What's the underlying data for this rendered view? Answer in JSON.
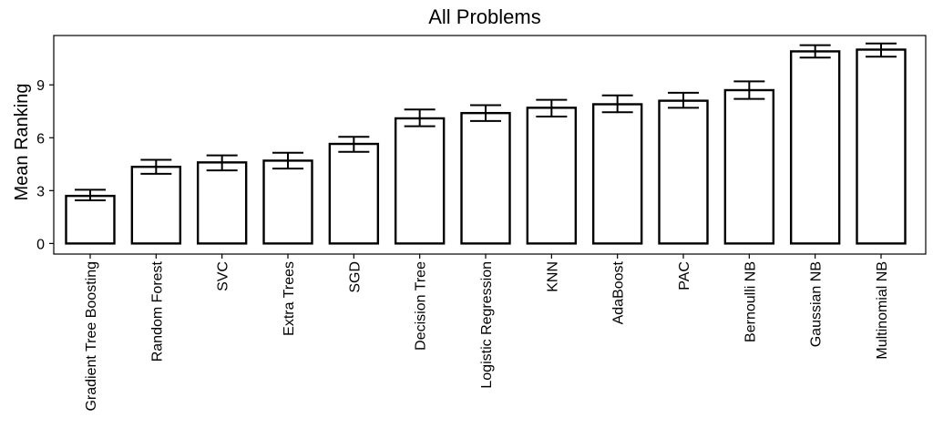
{
  "chart_data": {
    "type": "bar",
    "title": "All Problems",
    "xlabel": "",
    "ylabel": "Mean Ranking",
    "categories": [
      "Gradient Tree Boosting",
      "Random Forest",
      "SVC",
      "Extra Trees",
      "SGD",
      "Decision Tree",
      "Logistic Regression",
      "KNN",
      "AdaBoost",
      "PAC",
      "Bernoulli NB",
      "Gaussian NB",
      "Multinomial NB"
    ],
    "values": [
      2.7,
      4.35,
      4.6,
      4.7,
      5.65,
      7.1,
      7.4,
      7.7,
      7.9,
      8.1,
      8.7,
      10.9,
      11.0
    ],
    "error_low": [
      2.45,
      3.95,
      4.15,
      4.25,
      5.2,
      6.65,
      6.95,
      7.2,
      7.45,
      7.7,
      8.2,
      10.55,
      10.6
    ],
    "error_high": [
      3.05,
      4.75,
      5.0,
      5.15,
      6.05,
      7.6,
      7.85,
      8.15,
      8.4,
      8.55,
      9.2,
      11.25,
      11.35
    ],
    "yticks": [
      0,
      3,
      6,
      9
    ],
    "ylim": [
      -0.6,
      11.8
    ],
    "grid": false,
    "legend": "none",
    "colors": {
      "bar_fill": "#ffffff",
      "bar_stroke": "#000000",
      "axis": "#000000"
    }
  }
}
